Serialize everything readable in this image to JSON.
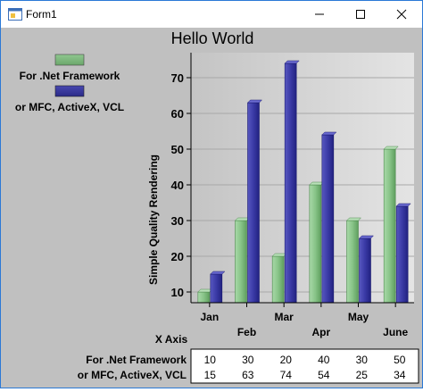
{
  "window": {
    "title": "Form1",
    "icon": "app-window-icon",
    "buttons": {
      "minimize": "minimize-icon",
      "maximize": "maximize-icon",
      "close": "close-icon"
    }
  },
  "chart_data": {
    "type": "bar",
    "title": "Hello World",
    "xlabel": "X Axis",
    "ylabel": "Simple Quality Rendering",
    "categories": [
      "Jan",
      "Feb",
      "Mar",
      "Apr",
      "May",
      "June"
    ],
    "series": [
      {
        "name": "For .Net Framework",
        "values": [
          10,
          30,
          20,
          40,
          30,
          50
        ],
        "color": "#80c080"
      },
      {
        "name": "or MFC, ActiveX, VCL",
        "values": [
          15,
          63,
          74,
          54,
          25,
          34
        ],
        "color": "#3a3aa0"
      }
    ],
    "ylim": [
      7,
      77
    ],
    "yticks": [
      10,
      20,
      30,
      40,
      50,
      60,
      70
    ],
    "grid": true,
    "legend": "top-left",
    "data_table": true
  }
}
